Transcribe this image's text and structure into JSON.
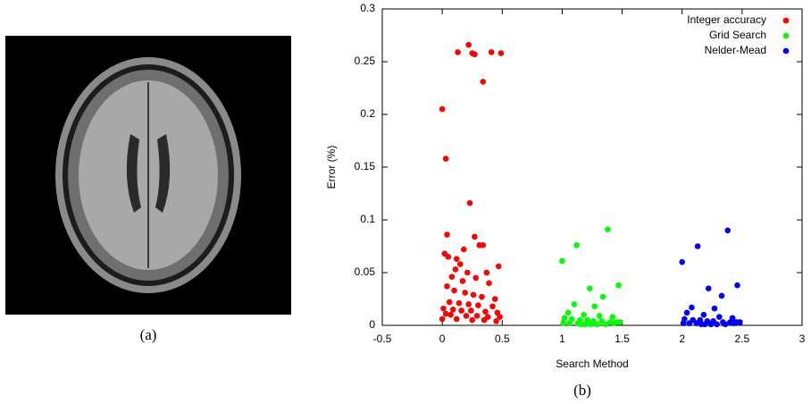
{
  "captions": {
    "a": "(a)",
    "b": "(b)"
  },
  "chart_data": {
    "type": "scatter",
    "x_label": "Search Method",
    "y_label": "Error (%)",
    "xlim": [
      -0.5,
      3
    ],
    "xticks": [
      -0.5,
      0,
      0.5,
      1,
      1.5,
      2,
      2.5,
      3
    ],
    "ylim": [
      0,
      0.3
    ],
    "yticks": [
      0,
      0.05,
      0.1,
      0.15,
      0.2,
      0.25,
      0.3
    ],
    "legend": "upper right",
    "series": [
      {
        "name": "Integer accuracy",
        "color": "#ff0000",
        "x": [
          0.22,
          0.13,
          0.25,
          0.27,
          0.41,
          0.49,
          0.34,
          0.0,
          0.03,
          0.23,
          0.04,
          0.27,
          0.34,
          0.31,
          0.18,
          0.02,
          0.05,
          0.12,
          0.15,
          0.47,
          0.11,
          0.21,
          0.37,
          0.08,
          0.28,
          0.17,
          0.39,
          0.04,
          0.1,
          0.19,
          0.26,
          0.33,
          0.44,
          0.06,
          0.14,
          0.22,
          0.3,
          0.42,
          0.01,
          0.09,
          0.16,
          0.24,
          0.36,
          0.46,
          0.03,
          0.07,
          0.2,
          0.29,
          0.38,
          0.48,
          0.0,
          0.12,
          0.25,
          0.35,
          0.45
        ],
        "values": [
          0.266,
          0.259,
          0.258,
          0.257,
          0.259,
          0.258,
          0.231,
          0.205,
          0.158,
          0.116,
          0.086,
          0.084,
          0.076,
          0.076,
          0.072,
          0.068,
          0.065,
          0.063,
          0.058,
          0.056,
          0.053,
          0.05,
          0.05,
          0.046,
          0.045,
          0.042,
          0.04,
          0.037,
          0.033,
          0.031,
          0.029,
          0.027,
          0.025,
          0.022,
          0.021,
          0.02,
          0.019,
          0.018,
          0.016,
          0.015,
          0.014,
          0.014,
          0.013,
          0.012,
          0.011,
          0.01,
          0.009,
          0.009,
          0.008,
          0.008,
          0.006,
          0.006,
          0.005,
          0.005,
          0.004
        ]
      },
      {
        "name": "Grid Search",
        "color": "#00ff00",
        "x": [
          1.0,
          1.12,
          1.38,
          1.47,
          1.23,
          1.34,
          1.1,
          1.27,
          1.05,
          1.18,
          1.31,
          1.42,
          1.02,
          1.08,
          1.15,
          1.21,
          1.26,
          1.33,
          1.4,
          1.45,
          1.01,
          1.06,
          1.13,
          1.19,
          1.24,
          1.29,
          1.36,
          1.43,
          1.48,
          1.16
        ],
        "values": [
          0.061,
          0.076,
          0.091,
          0.038,
          0.035,
          0.027,
          0.02,
          0.018,
          0.012,
          0.01,
          0.009,
          0.008,
          0.007,
          0.006,
          0.005,
          0.005,
          0.004,
          0.004,
          0.003,
          0.003,
          0.002,
          0.002,
          0.002,
          0.001,
          0.001,
          0.001,
          0.001,
          0.002,
          0.003,
          0.001
        ]
      },
      {
        "name": "Nelder-Mead",
        "color": "#0000ff",
        "x": [
          2.0,
          2.13,
          2.38,
          2.46,
          2.22,
          2.33,
          2.08,
          2.27,
          2.04,
          2.18,
          2.31,
          2.42,
          2.02,
          2.09,
          2.15,
          2.21,
          2.26,
          2.34,
          2.4,
          2.45,
          2.01,
          2.06,
          2.12,
          2.19,
          2.24,
          2.29,
          2.36,
          2.43,
          2.48,
          2.16
        ],
        "values": [
          0.06,
          0.075,
          0.09,
          0.038,
          0.035,
          0.028,
          0.017,
          0.016,
          0.012,
          0.01,
          0.008,
          0.007,
          0.006,
          0.005,
          0.005,
          0.004,
          0.004,
          0.003,
          0.003,
          0.003,
          0.002,
          0.002,
          0.002,
          0.001,
          0.001,
          0.001,
          0.001,
          0.002,
          0.003,
          0.001
        ]
      }
    ]
  }
}
